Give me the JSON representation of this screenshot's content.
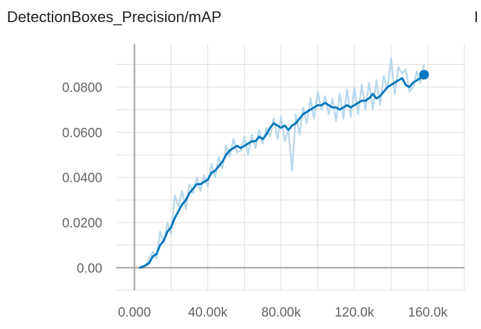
{
  "chart_data": {
    "type": "line",
    "title": "DetectionBoxes_Precision/mAP",
    "xlabel": "",
    "ylabel": "",
    "xlim": [
      -10000,
      180000
    ],
    "ylim": [
      -0.01,
      0.099
    ],
    "grid": true,
    "x_ticks": [
      0,
      40000,
      80000,
      120000,
      160000
    ],
    "x_tick_labels": [
      "0.000",
      "40.00k",
      "80.00k",
      "120.0k",
      "160.0k"
    ],
    "y_ticks": [
      0,
      0.02,
      0.04,
      0.06,
      0.08
    ],
    "y_tick_labels": [
      "0.00",
      "0.0200",
      "0.0400",
      "0.0600",
      "0.0800"
    ],
    "series": [
      {
        "role": "smoothed",
        "color": "#0277bd",
        "x": [
          3000,
          6000,
          8000,
          10000,
          12000,
          14000,
          16000,
          18000,
          20000,
          22000,
          24000,
          26000,
          28000,
          30000,
          32000,
          34000,
          36000,
          38000,
          40000,
          42000,
          44000,
          46000,
          48000,
          50000,
          52000,
          54000,
          56000,
          58000,
          60000,
          62000,
          64000,
          66000,
          68000,
          70000,
          72000,
          74000,
          76000,
          78000,
          80000,
          82000,
          84000,
          86000,
          88000,
          90000,
          92000,
          94000,
          96000,
          98000,
          100000,
          102000,
          104000,
          106000,
          108000,
          110000,
          112000,
          114000,
          116000,
          118000,
          120000,
          122000,
          124000,
          126000,
          128000,
          130000,
          132000,
          134000,
          136000,
          138000,
          140000,
          142000,
          144000,
          146000,
          148000,
          150000,
          152000,
          154000,
          156000,
          158000
        ],
        "y": [
          0.0,
          0.001,
          0.002,
          0.005,
          0.006,
          0.01,
          0.012,
          0.016,
          0.018,
          0.022,
          0.025,
          0.028,
          0.03,
          0.033,
          0.035,
          0.037,
          0.037,
          0.038,
          0.039,
          0.042,
          0.043,
          0.045,
          0.047,
          0.05,
          0.052,
          0.053,
          0.054,
          0.053,
          0.054,
          0.055,
          0.056,
          0.056,
          0.058,
          0.057,
          0.059,
          0.062,
          0.064,
          0.063,
          0.062,
          0.063,
          0.061,
          0.063,
          0.064,
          0.066,
          0.068,
          0.069,
          0.07,
          0.071,
          0.072,
          0.072,
          0.073,
          0.072,
          0.071,
          0.071,
          0.07,
          0.071,
          0.072,
          0.071,
          0.072,
          0.073,
          0.074,
          0.074,
          0.075,
          0.077,
          0.075,
          0.076,
          0.078,
          0.08,
          0.081,
          0.082,
          0.083,
          0.084,
          0.081,
          0.08,
          0.082,
          0.083,
          0.084,
          0.0855
        ]
      },
      {
        "role": "raw",
        "color": "#b3d4ea",
        "x": [
          3000,
          6000,
          8000,
          10000,
          12000,
          14000,
          16000,
          18000,
          20000,
          22000,
          24000,
          26000,
          28000,
          30000,
          32000,
          34000,
          36000,
          38000,
          40000,
          42000,
          44000,
          46000,
          48000,
          50000,
          52000,
          54000,
          56000,
          58000,
          60000,
          62000,
          64000,
          66000,
          68000,
          70000,
          72000,
          74000,
          76000,
          78000,
          80000,
          82000,
          84000,
          86000,
          88000,
          90000,
          92000,
          94000,
          96000,
          98000,
          100000,
          102000,
          104000,
          106000,
          108000,
          110000,
          112000,
          114000,
          116000,
          118000,
          120000,
          122000,
          124000,
          126000,
          128000,
          130000,
          132000,
          134000,
          136000,
          138000,
          140000,
          142000,
          144000,
          146000,
          148000,
          150000,
          152000,
          154000,
          156000,
          158000
        ],
        "y": [
          0.0,
          0.001,
          0.004,
          0.007,
          0.004,
          0.016,
          0.011,
          0.02,
          0.015,
          0.032,
          0.027,
          0.034,
          0.026,
          0.037,
          0.033,
          0.04,
          0.034,
          0.041,
          0.036,
          0.046,
          0.04,
          0.049,
          0.044,
          0.054,
          0.049,
          0.057,
          0.051,
          0.052,
          0.058,
          0.05,
          0.059,
          0.053,
          0.061,
          0.055,
          0.062,
          0.058,
          0.066,
          0.057,
          0.067,
          0.056,
          0.061,
          0.043,
          0.068,
          0.059,
          0.071,
          0.064,
          0.075,
          0.066,
          0.078,
          0.07,
          0.076,
          0.068,
          0.075,
          0.065,
          0.077,
          0.066,
          0.079,
          0.067,
          0.08,
          0.068,
          0.081,
          0.07,
          0.082,
          0.07,
          0.083,
          0.072,
          0.085,
          0.079,
          0.093,
          0.077,
          0.089,
          0.086,
          0.088,
          0.078,
          0.08,
          0.087,
          0.082,
          0.09
        ]
      }
    ],
    "last_point_marker": true
  },
  "header": {
    "next_chart_title_fragment": "I"
  }
}
